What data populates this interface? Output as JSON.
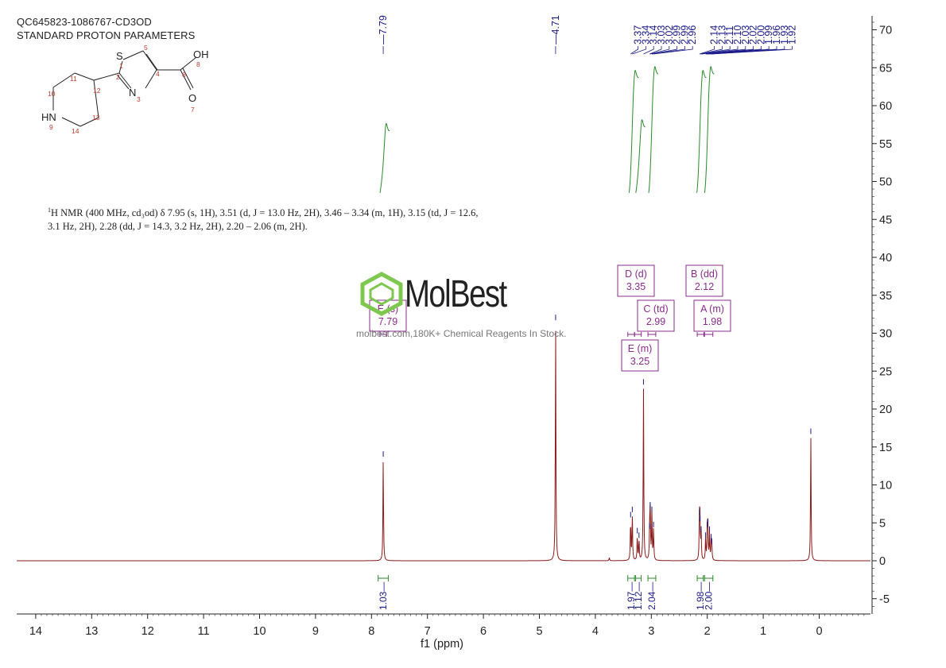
{
  "header": {
    "sample_id": "QC645823-1086767-CD3OD",
    "parameters": "STANDARD PROTON PARAMETERS"
  },
  "molecule": {
    "atoms": {
      "S": "S",
      "N": "N",
      "OH": "OH",
      "O": "O",
      "HN": "HN",
      "n1": "1",
      "n2": "2",
      "n3": "3",
      "n4": "4",
      "n5": "5",
      "n6": "6",
      "n7": "7",
      "n8": "8",
      "n9": "9",
      "n10": "10",
      "n11": "11",
      "n12": "12",
      "n13": "13",
      "n14": "14"
    }
  },
  "nmr_description": {
    "sup": "1",
    "text": "H NMR (400 MHz, cd₃od) δ 7.95 (s, 1H), 3.51 (d, J = 13.0 Hz, 2H), 3.46 – 3.34 (m, 1H), 3.15 (td, J = 12.6, 3.1 Hz, 2H), 2.28 (dd, J = 14.3, 3.2 Hz, 2H), 2.20 – 2.06 (m, 2H)."
  },
  "watermark": {
    "logo": "MolBest",
    "text": "molbest.com,180K+ Chemical Reagents In Stock."
  },
  "colors": {
    "spectrum": "#8b1a1a",
    "integral": "#2a8a2a",
    "peak_label": "#1a1a8a",
    "multiplet": "#8b2b8b",
    "axis": "#222222"
  },
  "chart_data": {
    "type": "line",
    "xlabel": "f1 (ppm)",
    "xlim": [
      14.3,
      -0.9
    ],
    "ylim": [
      -7,
      72
    ],
    "x_ticks": [
      "14",
      "13",
      "12",
      "11",
      "10",
      "9",
      "8",
      "7",
      "6",
      "5",
      "4",
      "3",
      "2",
      "1",
      "0"
    ],
    "y_ticks": [
      "70",
      "65",
      "60",
      "55",
      "50",
      "45",
      "40",
      "35",
      "30",
      "25",
      "20",
      "15",
      "10",
      "5",
      "0",
      "-5"
    ],
    "peaks": [
      {
        "ppm": 7.79,
        "height": 13.5
      },
      {
        "ppm": 4.71,
        "height": 31.5
      },
      {
        "ppm": 3.37,
        "height": 5.5
      },
      {
        "ppm": 3.34,
        "height": 6.2
      },
      {
        "ppm": 3.25,
        "height": 3.4
      },
      {
        "ppm": 3.22,
        "height": 2.8
      },
      {
        "ppm": 3.14,
        "height": 23.0
      },
      {
        "ppm": 3.03,
        "height": 4.0
      },
      {
        "ppm": 3.02,
        "height": 6.8
      },
      {
        "ppm": 2.99,
        "height": 6.2
      },
      {
        "ppm": 2.96,
        "height": 4.2
      },
      {
        "ppm": 2.14,
        "height": 5.8
      },
      {
        "ppm": 2.13,
        "height": 5.0
      },
      {
        "ppm": 2.11,
        "height": 3.6
      },
      {
        "ppm": 2.03,
        "height": 2.8
      },
      {
        "ppm": 2.0,
        "height": 4.2
      },
      {
        "ppm": 1.99,
        "height": 4.6
      },
      {
        "ppm": 1.96,
        "height": 3.6
      },
      {
        "ppm": 1.93,
        "height": 2.6
      },
      {
        "ppm": 1.92,
        "height": 2.0
      },
      {
        "ppm": 3.75,
        "height": 0.4
      },
      {
        "ppm": 0.15,
        "height": 16.5
      }
    ],
    "peak_labels": [
      "7.79",
      "4.71",
      "3.37",
      "3.34",
      "3.14",
      "3.03",
      "3.02",
      "2.99",
      "2.99",
      "2.96",
      "2.14",
      "2.13",
      "2.11",
      "2.10",
      "2.03",
      "2.02",
      "2.00",
      "1.99",
      "1.96",
      "1.93",
      "1.92"
    ],
    "peak_label_groups": [
      {
        "ppm": [
          7.79
        ],
        "labels": [
          "7.79"
        ]
      },
      {
        "ppm": [
          4.71
        ],
        "labels": [
          "4.71"
        ]
      },
      {
        "ppm": [
          3.37,
          3.34,
          3.14,
          3.03,
          3.02,
          2.99,
          2.99,
          2.96
        ],
        "labels": [
          "3.37",
          "3.34",
          "3.14",
          "3.03",
          "3.02",
          "2.99",
          "2.99",
          "2.96"
        ]
      },
      {
        "ppm": [
          2.14,
          2.13,
          2.11,
          2.1,
          2.03,
          2.02,
          2.0,
          1.99,
          1.96,
          1.93,
          1.92
        ],
        "labels": [
          "2.14",
          "2.13",
          "2.11",
          "2.10",
          "2.03",
          "2.02",
          "2.00",
          "1.99",
          "1.96",
          "1.93",
          "1.92"
        ]
      }
    ],
    "integrations": [
      {
        "from": 7.88,
        "to": 7.7,
        "value": "1.03"
      },
      {
        "from": 3.42,
        "to": 3.3,
        "value": "1.97"
      },
      {
        "from": 3.28,
        "to": 3.18,
        "value": "1.12"
      },
      {
        "from": 3.06,
        "to": 2.92,
        "value": "2.04"
      },
      {
        "from": 2.18,
        "to": 2.07,
        "value": "1.98"
      },
      {
        "from": 2.05,
        "to": 1.9,
        "value": "2.00"
      }
    ],
    "integral_curves": [
      {
        "ppm": 7.79,
        "bottom": 48.5,
        "top": 56.5
      },
      {
        "ppm": 3.34,
        "bottom": 48.5,
        "top": 63.5
      },
      {
        "ppm": 3.22,
        "bottom": 48.5,
        "top": 57.0
      },
      {
        "ppm": 2.99,
        "bottom": 48.5,
        "top": 64.0
      },
      {
        "ppm": 2.13,
        "bottom": 48.5,
        "top": 63.5
      },
      {
        "ppm": 1.99,
        "bottom": 48.5,
        "top": 64.0
      }
    ],
    "multiplets": [
      {
        "letter": "D (d)",
        "shift": "3.35",
        "ppm": 3.35,
        "range": [
          3.42,
          3.3
        ]
      },
      {
        "letter": "B (dd)",
        "shift": "2.12",
        "ppm": 2.12,
        "range": [
          2.18,
          2.06
        ]
      },
      {
        "letter": "C (td)",
        "shift": "2.99",
        "ppm": 2.99,
        "range": [
          3.06,
          2.92
        ]
      },
      {
        "letter": "A (m)",
        "shift": "1.98",
        "ppm": 1.98,
        "range": [
          2.05,
          1.9
        ]
      },
      {
        "letter": "E (s)",
        "shift": "7.79",
        "ppm": 7.79,
        "range": [
          7.85,
          7.73
        ]
      },
      {
        "letter": "E (m)",
        "shift": "3.25",
        "ppm": 3.25,
        "range": [
          3.3,
          3.18
        ]
      }
    ]
  }
}
